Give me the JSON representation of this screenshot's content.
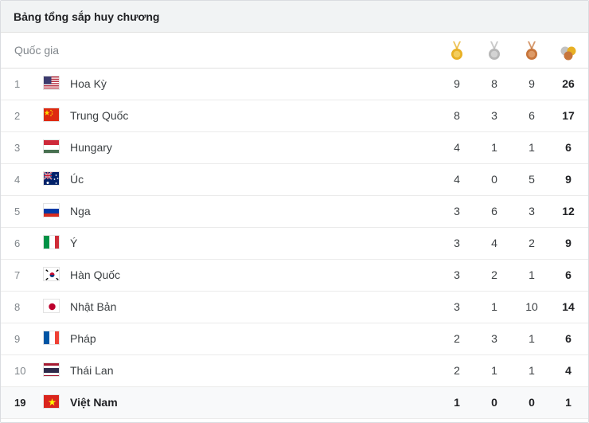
{
  "title": "Bảng tổng sắp huy chương",
  "header": {
    "country_label": "Quốc gia",
    "medal_icons": [
      "gold-medal-icon",
      "silver-medal-icon",
      "bronze-medal-icon",
      "total-medals-icon"
    ]
  },
  "colors": {
    "gold": "#e8b024",
    "silver": "#b7b7b7",
    "bronze": "#c7753b"
  },
  "rows": [
    {
      "rank": "1",
      "country": "Hoa Kỳ",
      "flag": "flag-usa-icon",
      "gold": "9",
      "silver": "8",
      "bronze": "9",
      "total": "26"
    },
    {
      "rank": "2",
      "country": "Trung Quốc",
      "flag": "flag-china-icon",
      "gold": "8",
      "silver": "3",
      "bronze": "6",
      "total": "17"
    },
    {
      "rank": "3",
      "country": "Hungary",
      "flag": "flag-hungary-icon",
      "gold": "4",
      "silver": "1",
      "bronze": "1",
      "total": "6"
    },
    {
      "rank": "4",
      "country": "Úc",
      "flag": "flag-australia-icon",
      "gold": "4",
      "silver": "0",
      "bronze": "5",
      "total": "9"
    },
    {
      "rank": "5",
      "country": "Nga",
      "flag": "flag-russia-icon",
      "gold": "3",
      "silver": "6",
      "bronze": "3",
      "total": "12"
    },
    {
      "rank": "6",
      "country": "Ý",
      "flag": "flag-italy-icon",
      "gold": "3",
      "silver": "4",
      "bronze": "2",
      "total": "9"
    },
    {
      "rank": "7",
      "country": "Hàn Quốc",
      "flag": "flag-south-korea-icon",
      "gold": "3",
      "silver": "2",
      "bronze": "1",
      "total": "6"
    },
    {
      "rank": "8",
      "country": "Nhật Bản",
      "flag": "flag-japan-icon",
      "gold": "3",
      "silver": "1",
      "bronze": "10",
      "total": "14"
    },
    {
      "rank": "9",
      "country": "Pháp",
      "flag": "flag-france-icon",
      "gold": "2",
      "silver": "3",
      "bronze": "1",
      "total": "6"
    },
    {
      "rank": "10",
      "country": "Thái Lan",
      "flag": "flag-thailand-icon",
      "gold": "2",
      "silver": "1",
      "bronze": "1",
      "total": "4"
    },
    {
      "rank": "19",
      "country": "Việt Nam",
      "flag": "flag-vietnam-icon",
      "gold": "1",
      "silver": "0",
      "bronze": "0",
      "total": "1"
    }
  ]
}
